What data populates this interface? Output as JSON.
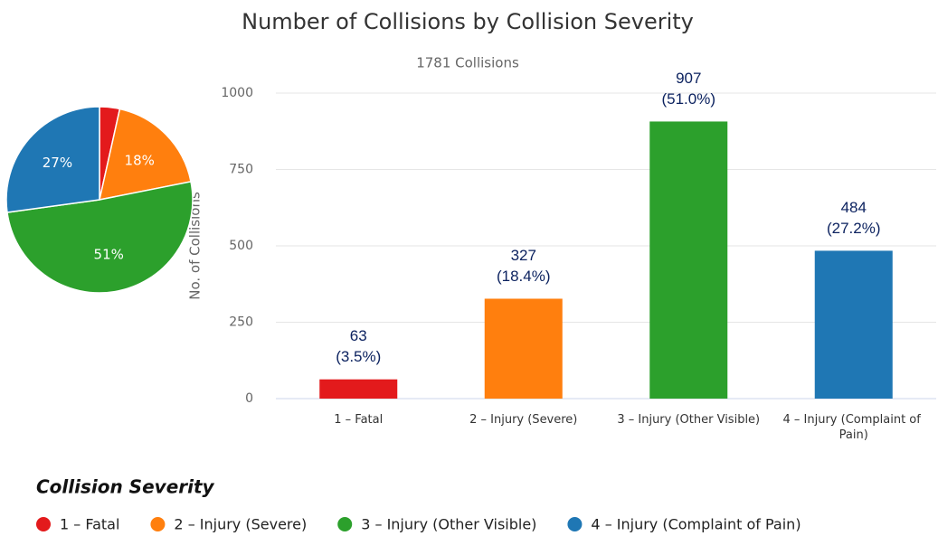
{
  "chart_data": [
    {
      "type": "pie",
      "values": [
        3.5,
        18.4,
        51.0,
        27.2
      ],
      "value_labels": [
        null,
        "18%",
        "51%",
        "27%"
      ],
      "colors": [
        "#e31a1c",
        "#ff7f0e",
        "#2ca02c",
        "#1f77b4"
      ]
    },
    {
      "type": "bar",
      "title": "Number of Collisions by Collision Severity",
      "subtitle": "1781 Collisions",
      "ylabel": "No. of Collisions",
      "categories": [
        "1 – Fatal",
        "2 – Injury (Severe)",
        "3 – Injury (Other Visible)",
        "4 – Injury (Complaint of Pain)"
      ],
      "values": [
        63,
        327,
        907,
        484
      ],
      "percent_labels": [
        "(3.5%)",
        "(18.4%)",
        "(51.0%)",
        "(27.2%)"
      ],
      "colors": [
        "#e31a1c",
        "#ff7f0e",
        "#2ca02c",
        "#1f77b4"
      ],
      "ylim": [
        0,
        1000
      ],
      "yticks": [
        0,
        250,
        500,
        750,
        1000
      ],
      "grid": true,
      "legend_title": "Collision Severity",
      "legend": "bottom-left"
    }
  ]
}
